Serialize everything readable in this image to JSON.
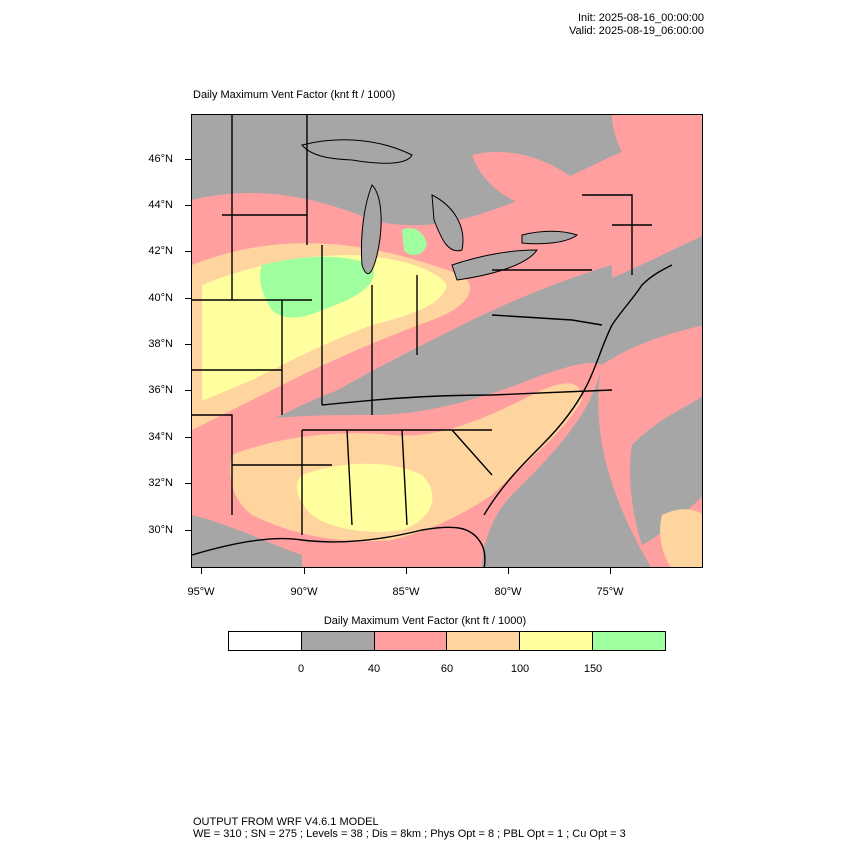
{
  "header": {
    "init": "Init: 2025-08-16_00:00:00",
    "valid": "Valid: 2025-08-19_06:00:00"
  },
  "map": {
    "title": "Daily Maximum Vent Factor   (knt ft / 1000)",
    "lat_labels": [
      "46°N",
      "44°N",
      "42°N",
      "40°N",
      "38°N",
      "36°N",
      "34°N",
      "32°N",
      "30°N"
    ],
    "lon_labels": [
      "95°W",
      "90°W",
      "85°W",
      "80°W",
      "75°W"
    ]
  },
  "colorbar": {
    "title": "Daily Maximum Vent Factor  (knt ft / 1000)",
    "colors": [
      "#ffffff",
      "#a6a6a6",
      "#ff9f9f",
      "#ffd59f",
      "#ffff9f",
      "#9fff9f"
    ],
    "labels": [
      "0",
      "40",
      "60",
      "100",
      "150"
    ]
  },
  "footer": {
    "line1": "OUTPUT FROM WRF V4.6.1 MODEL",
    "line2": "WE = 310 ; SN = 275 ; Levels = 38 ; Dis = 8km ; Phys Opt = 8 ; PBL Opt = 1 ; Cu Opt = 3"
  }
}
